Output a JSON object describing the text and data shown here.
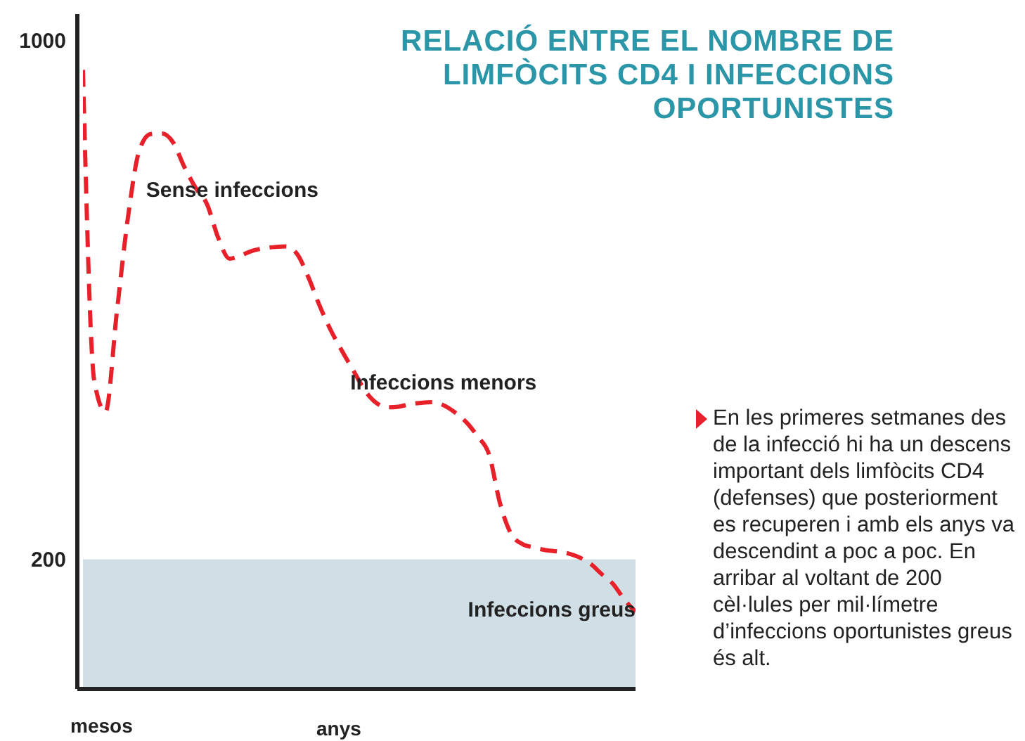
{
  "chart_data": {
    "type": "line",
    "title": "RELACIÓ ENTRE EL NOMBRE DE LIMFÒCITS CD4 I INFECCIONS OPORTUNISTES",
    "categories": [
      null,
      null,
      null,
      null,
      null,
      null,
      null,
      null,
      null,
      null,
      null,
      null,
      null,
      null,
      null,
      null,
      null,
      null,
      null,
      null,
      null,
      null,
      null,
      null,
      null,
      null,
      null,
      null,
      null,
      null,
      null,
      null,
      null,
      null,
      null,
      null,
      null,
      null,
      null,
      null,
      null,
      null,
      null,
      null,
      null,
      null,
      null,
      null,
      null,
      null
    ],
    "series": [
      {
        "color": "#e8202a",
        "line_style": "dashed",
        "values": [
          954,
          475,
          427,
          580,
          728,
          830,
          855,
          856,
          842,
          804,
          772,
          747,
          695,
          663,
          668,
          675,
          679,
          681,
          682,
          670,
          634,
          590,
          552,
          520,
          490,
          460,
          441,
          434,
          435,
          439,
          441,
          442,
          437,
          426,
          411,
          389,
          362,
          285,
          238,
          223,
          218,
          214,
          212,
          209,
          203,
          193,
          177,
          162,
          138,
          119
        ]
      }
    ],
    "ylim": [
      0,
      1040
    ],
    "yticks": [
      200,
      1000
    ],
    "tick_labels": "y",
    "bands": [
      {
        "axis": "y",
        "from": 0,
        "to": 200,
        "label": "Infeccions greus",
        "color": "#d0dfe6"
      }
    ],
    "annotations": [
      "Sense infeccions",
      "Infeccions menors",
      "mesos",
      "anys",
      "En les primeres setmanes des de la infecció hi ha un descens important dels limfòcits CD4 (defenses) que posteriorment es recuperen i amb els anys va descendint a poc a poc. En arribar al voltant de 200 cèl·lules per mil·límetre d’infeccions oportunistes greus és alt."
    ]
  }
}
